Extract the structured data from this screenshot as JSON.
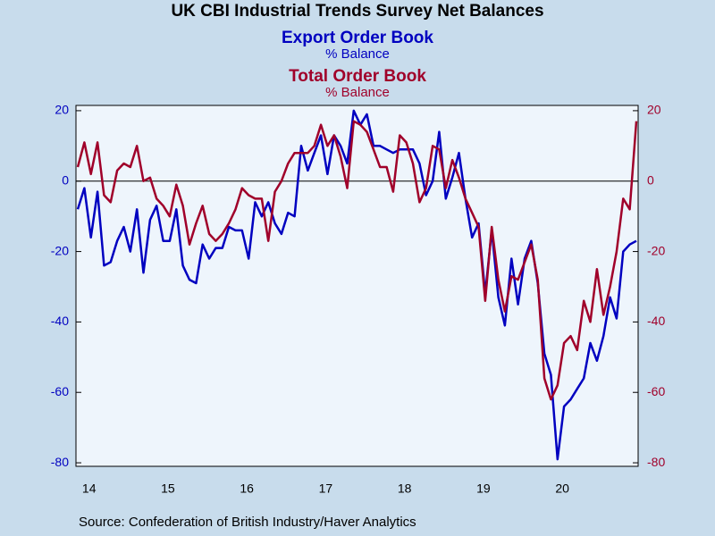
{
  "chart_data": {
    "type": "line",
    "title": "UK CBI Industrial Trends Survey Net Balances",
    "y_label": "% Balance",
    "y2_label": "% Balance",
    "source": "Source:  Confederation of British Industry/Haver Analytics",
    "categories": [
      null,
      null,
      "14",
      null,
      null,
      null,
      null,
      null,
      null,
      null,
      null,
      null,
      null,
      null,
      "15",
      null,
      null,
      null,
      null,
      null,
      null,
      null,
      null,
      null,
      null,
      null,
      "16",
      null,
      null,
      null,
      null,
      null,
      null,
      null,
      null,
      null,
      null,
      null,
      "17",
      null,
      null,
      null,
      null,
      null,
      null,
      null,
      null,
      null,
      null,
      null,
      "18",
      null,
      null,
      null,
      null,
      null,
      null,
      null,
      null,
      null,
      null,
      null,
      "19",
      null,
      null,
      null,
      null,
      null,
      null,
      null,
      null,
      null,
      null,
      null,
      "20",
      null,
      null,
      null,
      null,
      null,
      null,
      null,
      null,
      null,
      null,
      null
    ],
    "series": [
      {
        "name": "Export Order Book",
        "color": "#0000c0",
        "axis": "y",
        "values": [
          -8,
          -2,
          -16,
          -3,
          -24,
          -23,
          -17,
          -13,
          -20,
          -8,
          -26,
          -11,
          -7,
          -17,
          -17,
          -8,
          -24,
          -28,
          -29,
          -18,
          -22,
          -19,
          -19,
          -13,
          -14,
          -14,
          -22,
          -6,
          -10,
          -6,
          -12,
          -15,
          -9,
          -10,
          10,
          3,
          8,
          13,
          2,
          13,
          10,
          5,
          20,
          16,
          19,
          10,
          10,
          9,
          8,
          9,
          9,
          9,
          5,
          -4,
          0,
          14,
          -5,
          1,
          8,
          -5,
          -16,
          -12,
          -32,
          -14,
          -33,
          -41,
          -22,
          -35,
          -22,
          -17,
          -29,
          -49,
          -55,
          -79,
          -64,
          -62,
          -59,
          -56,
          -46,
          -51,
          -44,
          -33,
          -39,
          -20,
          -18,
          -17
        ]
      },
      {
        "name": "Total Order Book",
        "color": "#a0002a",
        "axis": "y2",
        "values": [
          4,
          11,
          2,
          11,
          -4,
          -6,
          3,
          5,
          4,
          10,
          0,
          1,
          -5,
          -7,
          -10,
          -1,
          -7,
          -18,
          -12,
          -7,
          -15,
          -17,
          -15,
          -12,
          -8,
          -2,
          -4,
          -5,
          -5,
          -17,
          -3,
          0,
          5,
          8,
          8,
          8,
          10,
          16,
          10,
          13,
          7,
          -2,
          17,
          16,
          14,
          9,
          4,
          4,
          -3,
          13,
          11,
          5,
          -6,
          -2,
          10,
          9,
          -2,
          6,
          1,
          -5,
          -9,
          -13,
          -34,
          -13,
          -28,
          -37,
          -27,
          -28,
          -23,
          -18,
          -28,
          -56,
          -62,
          -58,
          -46,
          -44,
          -48,
          -34,
          -40,
          -25,
          -38,
          -30,
          -20,
          -5,
          -8,
          17
        ]
      }
    ],
    "ylim": [
      -81,
      21.5
    ],
    "yticks": [
      -80,
      -60,
      -40,
      -20,
      0,
      20
    ],
    "y2lim": [
      -81,
      21.5
    ],
    "y2ticks": [
      -80,
      -60,
      -40,
      -20,
      0,
      20
    ],
    "zero_line": true
  }
}
